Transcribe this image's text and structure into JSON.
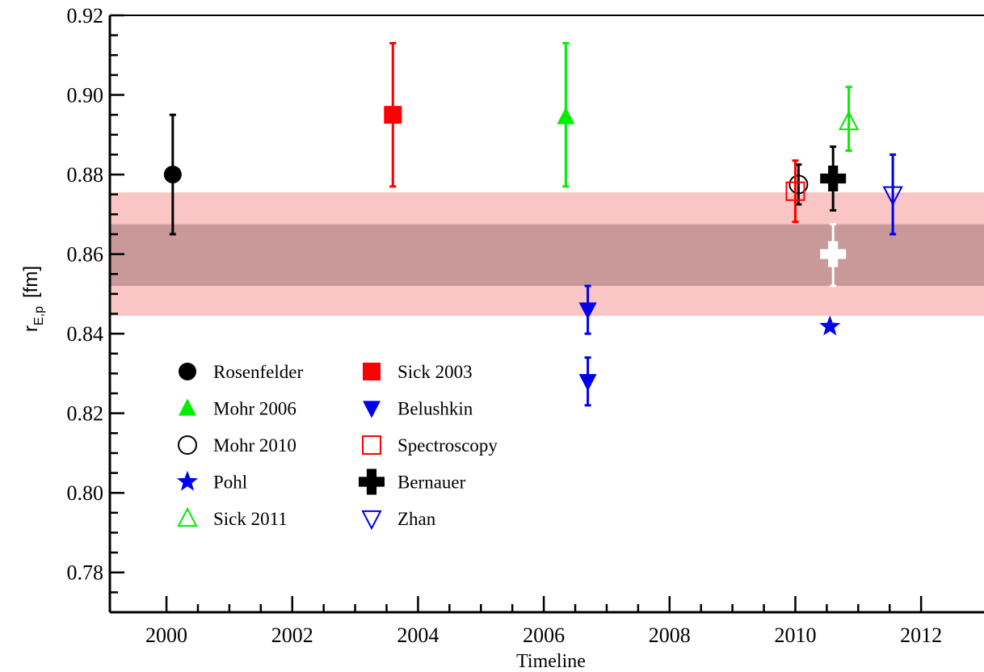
{
  "chart_data": {
    "type": "scatter",
    "title": "",
    "xlabel": "Timeline",
    "ylabel": "r",
    "ylabel_sub": "E,p",
    "ylabel_unit": "[fm]",
    "xlim": [
      1999.1,
      2013.0
    ],
    "ylim": [
      0.77,
      0.92
    ],
    "xticks": [
      2000,
      2002,
      2004,
      2006,
      2008,
      2010,
      2012
    ],
    "yticks": [
      0.78,
      0.8,
      0.82,
      0.84,
      0.86,
      0.88,
      0.9,
      0.92
    ],
    "xtick_labels": [
      "2000",
      "2002",
      "2004",
      "2006",
      "2008",
      "2010",
      "2012"
    ],
    "ytick_labels": [
      "0.78",
      "0.80",
      "0.82",
      "0.84",
      "0.86",
      "0.88",
      "0.90",
      "0.92"
    ],
    "grid": false,
    "legend_position": "lower-left",
    "bands": [
      {
        "y_low": 0.8445,
        "y_high": 0.8755,
        "color": "#f9c5c5"
      },
      {
        "y_low": 0.852,
        "y_high": 0.8675,
        "color": "#c99999"
      }
    ],
    "series": [
      {
        "name": "Rosenfelder",
        "marker": "circle",
        "filled": true,
        "color": "#000000",
        "points": [
          {
            "x": 2000.1,
            "y": 0.88,
            "err_low": 0.865,
            "err_high": 0.895
          }
        ]
      },
      {
        "name": "Sick 2003",
        "marker": "square",
        "filled": true,
        "color": "#ff0000",
        "points": [
          {
            "x": 2003.6,
            "y": 0.895,
            "err_low": 0.877,
            "err_high": 0.913
          }
        ]
      },
      {
        "name": "Mohr 2006",
        "marker": "triangle-up",
        "filled": true,
        "color": "#00ee00",
        "points": [
          {
            "x": 2006.35,
            "y": 0.8945,
            "err_low": 0.877,
            "err_high": 0.913
          }
        ]
      },
      {
        "name": "Belushkin",
        "marker": "triangle-down",
        "filled": true,
        "color": "#0000ee",
        "points": [
          {
            "x": 2006.7,
            "y": 0.846,
            "err_low": 0.84,
            "err_high": 0.852
          },
          {
            "x": 2006.7,
            "y": 0.828,
            "err_low": 0.822,
            "err_high": 0.834
          }
        ]
      },
      {
        "name": "Mohr 2010",
        "marker": "circle",
        "filled": false,
        "color": "#000000",
        "points": [
          {
            "x": 2010.05,
            "y": 0.8775,
            "err_low": 0.8725,
            "err_high": 0.8825
          }
        ]
      },
      {
        "name": "Spectroscopy",
        "marker": "square",
        "filled": false,
        "color": "#ff0000",
        "points": [
          {
            "x": 2010.0,
            "y": 0.8758,
            "err_low": 0.8681,
            "err_high": 0.8835
          }
        ]
      },
      {
        "name": "Pohl",
        "marker": "star",
        "filled": true,
        "color": "#0000ee",
        "points": [
          {
            "x": 2010.55,
            "y": 0.8418,
            "err_low": 0.8418,
            "err_high": 0.8418
          }
        ]
      },
      {
        "name": "Bernauer",
        "marker": "cross",
        "filled": true,
        "color": "#000000",
        "points": [
          {
            "x": 2010.6,
            "y": 0.879,
            "err_low": 0.871,
            "err_high": 0.887
          }
        ]
      },
      {
        "name": "",
        "marker": "cross",
        "filled": true,
        "color": "#ffffff",
        "points": [
          {
            "x": 2010.6,
            "y": 0.86,
            "err_low": 0.852,
            "err_high": 0.8675
          }
        ]
      },
      {
        "name": "Sick 2011",
        "marker": "triangle-up",
        "filled": false,
        "color": "#00ee00",
        "points": [
          {
            "x": 2010.85,
            "y": 0.8932,
            "err_low": 0.886,
            "err_high": 0.902
          }
        ]
      },
      {
        "name": "Zhan",
        "marker": "triangle-down",
        "filled": false,
        "color": "#0000ee",
        "points": [
          {
            "x": 2011.55,
            "y": 0.875,
            "err_low": 0.865,
            "err_high": 0.885
          }
        ]
      }
    ],
    "legend": [
      {
        "label": "Rosenfelder",
        "marker": "circle",
        "filled": true,
        "color": "#000000"
      },
      {
        "label": "Sick 2003",
        "marker": "square",
        "filled": true,
        "color": "#ff0000"
      },
      {
        "label": "Mohr 2006",
        "marker": "triangle-up",
        "filled": true,
        "color": "#00ee00"
      },
      {
        "label": "Belushkin",
        "marker": "triangle-down",
        "filled": true,
        "color": "#0000ee"
      },
      {
        "label": "Mohr 2010",
        "marker": "circle",
        "filled": false,
        "color": "#000000"
      },
      {
        "label": "Spectroscopy",
        "marker": "square",
        "filled": false,
        "color": "#ff0000"
      },
      {
        "label": "Pohl",
        "marker": "star",
        "filled": true,
        "color": "#0000ee"
      },
      {
        "label": "Bernauer",
        "marker": "cross",
        "filled": true,
        "color": "#000000"
      },
      {
        "label": "Sick 2011",
        "marker": "triangle-up",
        "filled": false,
        "color": "#00ee00"
      },
      {
        "label": "Zhan",
        "marker": "triangle-down",
        "filled": false,
        "color": "#0000ee"
      }
    ]
  }
}
